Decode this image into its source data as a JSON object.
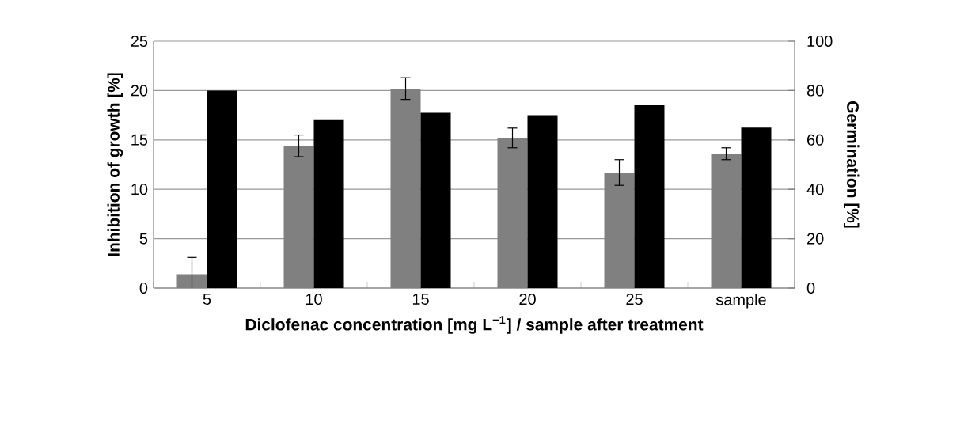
{
  "chart_data": {
    "type": "bar",
    "xlabel": "Diclofenac concentration [mg L$^{−1}$] / sample after treatment",
    "ylabel": "Inhibition of growth [%]",
    "y2label": "Germination [%]",
    "categories": [
      "5",
      "10",
      "15",
      "20",
      "25",
      "sample"
    ],
    "series": [
      {
        "color": "#808080",
        "values": [
          1.4,
          14.4,
          20.2,
          15.2,
          11.7,
          13.6
        ],
        "errors": [
          1.7,
          1.1,
          1.1,
          1.0,
          1.3,
          0.6
        ]
      },
      {
        "color": "#000000",
        "axis": "y2",
        "values": [
          80,
          68,
          71,
          70,
          74,
          65
        ]
      }
    ],
    "ylim": [
      0,
      25
    ],
    "yticks": [
      0,
      5,
      10,
      15,
      20,
      25
    ],
    "y2lim": [
      0,
      100
    ],
    "y2ticks": [
      0,
      20,
      40,
      60,
      80,
      100
    ],
    "grid": "y"
  }
}
